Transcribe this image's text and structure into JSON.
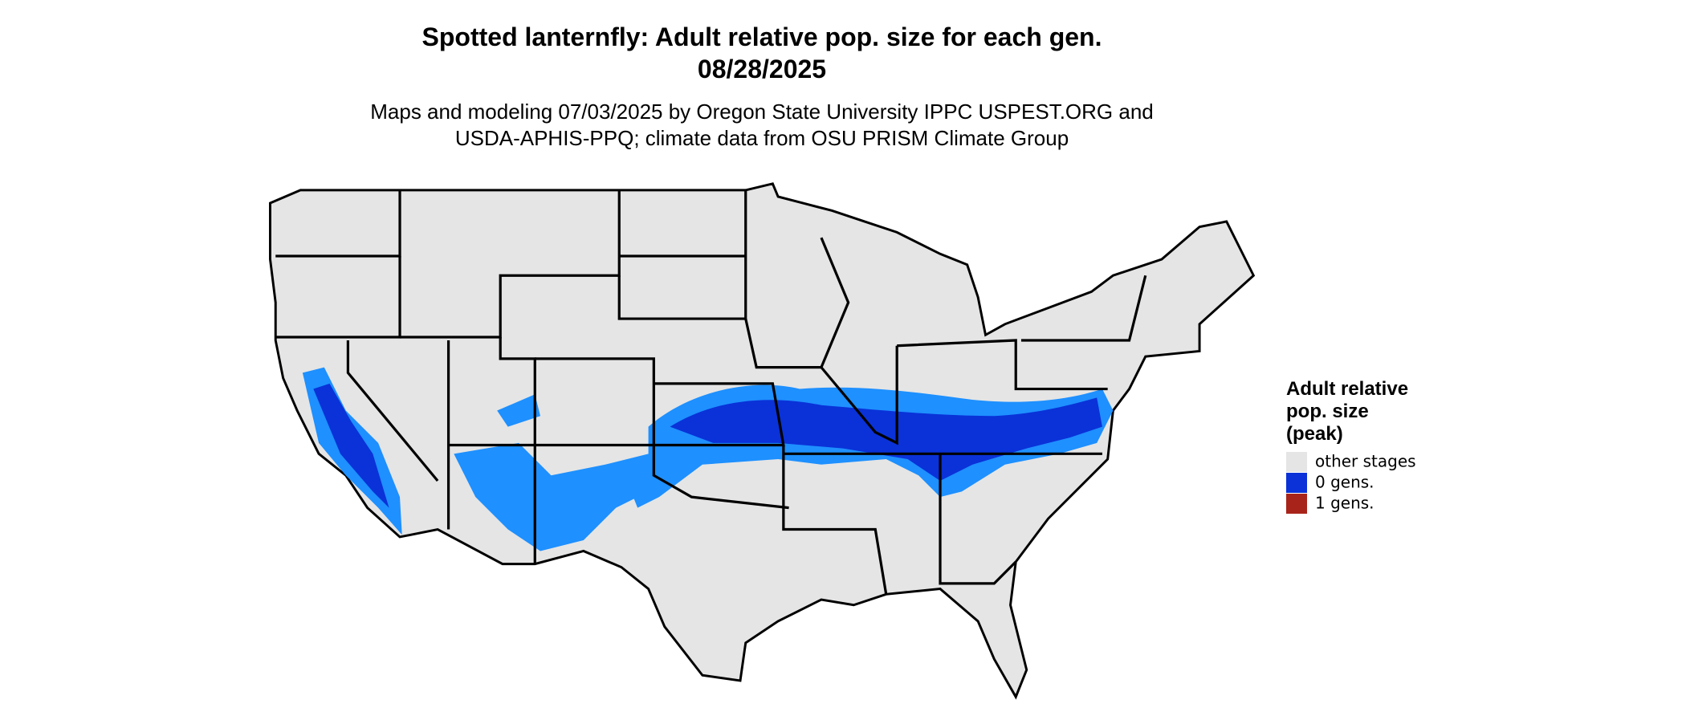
{
  "header": {
    "title": [
      "Spotted lanternfly: Adult relative pop. size for each gen.",
      "08/28/2025"
    ],
    "subtitle": [
      "Maps and modeling 07/03/2025 by Oregon State University IPPC USPEST.ORG and",
      "USDA-APHIS-PPQ; climate data from OSU PRISM Climate Group"
    ]
  },
  "legend": {
    "title": [
      "Adult relative",
      "pop. size",
      "(peak)"
    ],
    "items": [
      {
        "label": "other stages",
        "color": "#e5e5e5"
      },
      {
        "label": "0 gens.",
        "color": "#0a32d8"
      },
      {
        "label": "1 gens.",
        "color": "#a8241a"
      }
    ]
  }
}
